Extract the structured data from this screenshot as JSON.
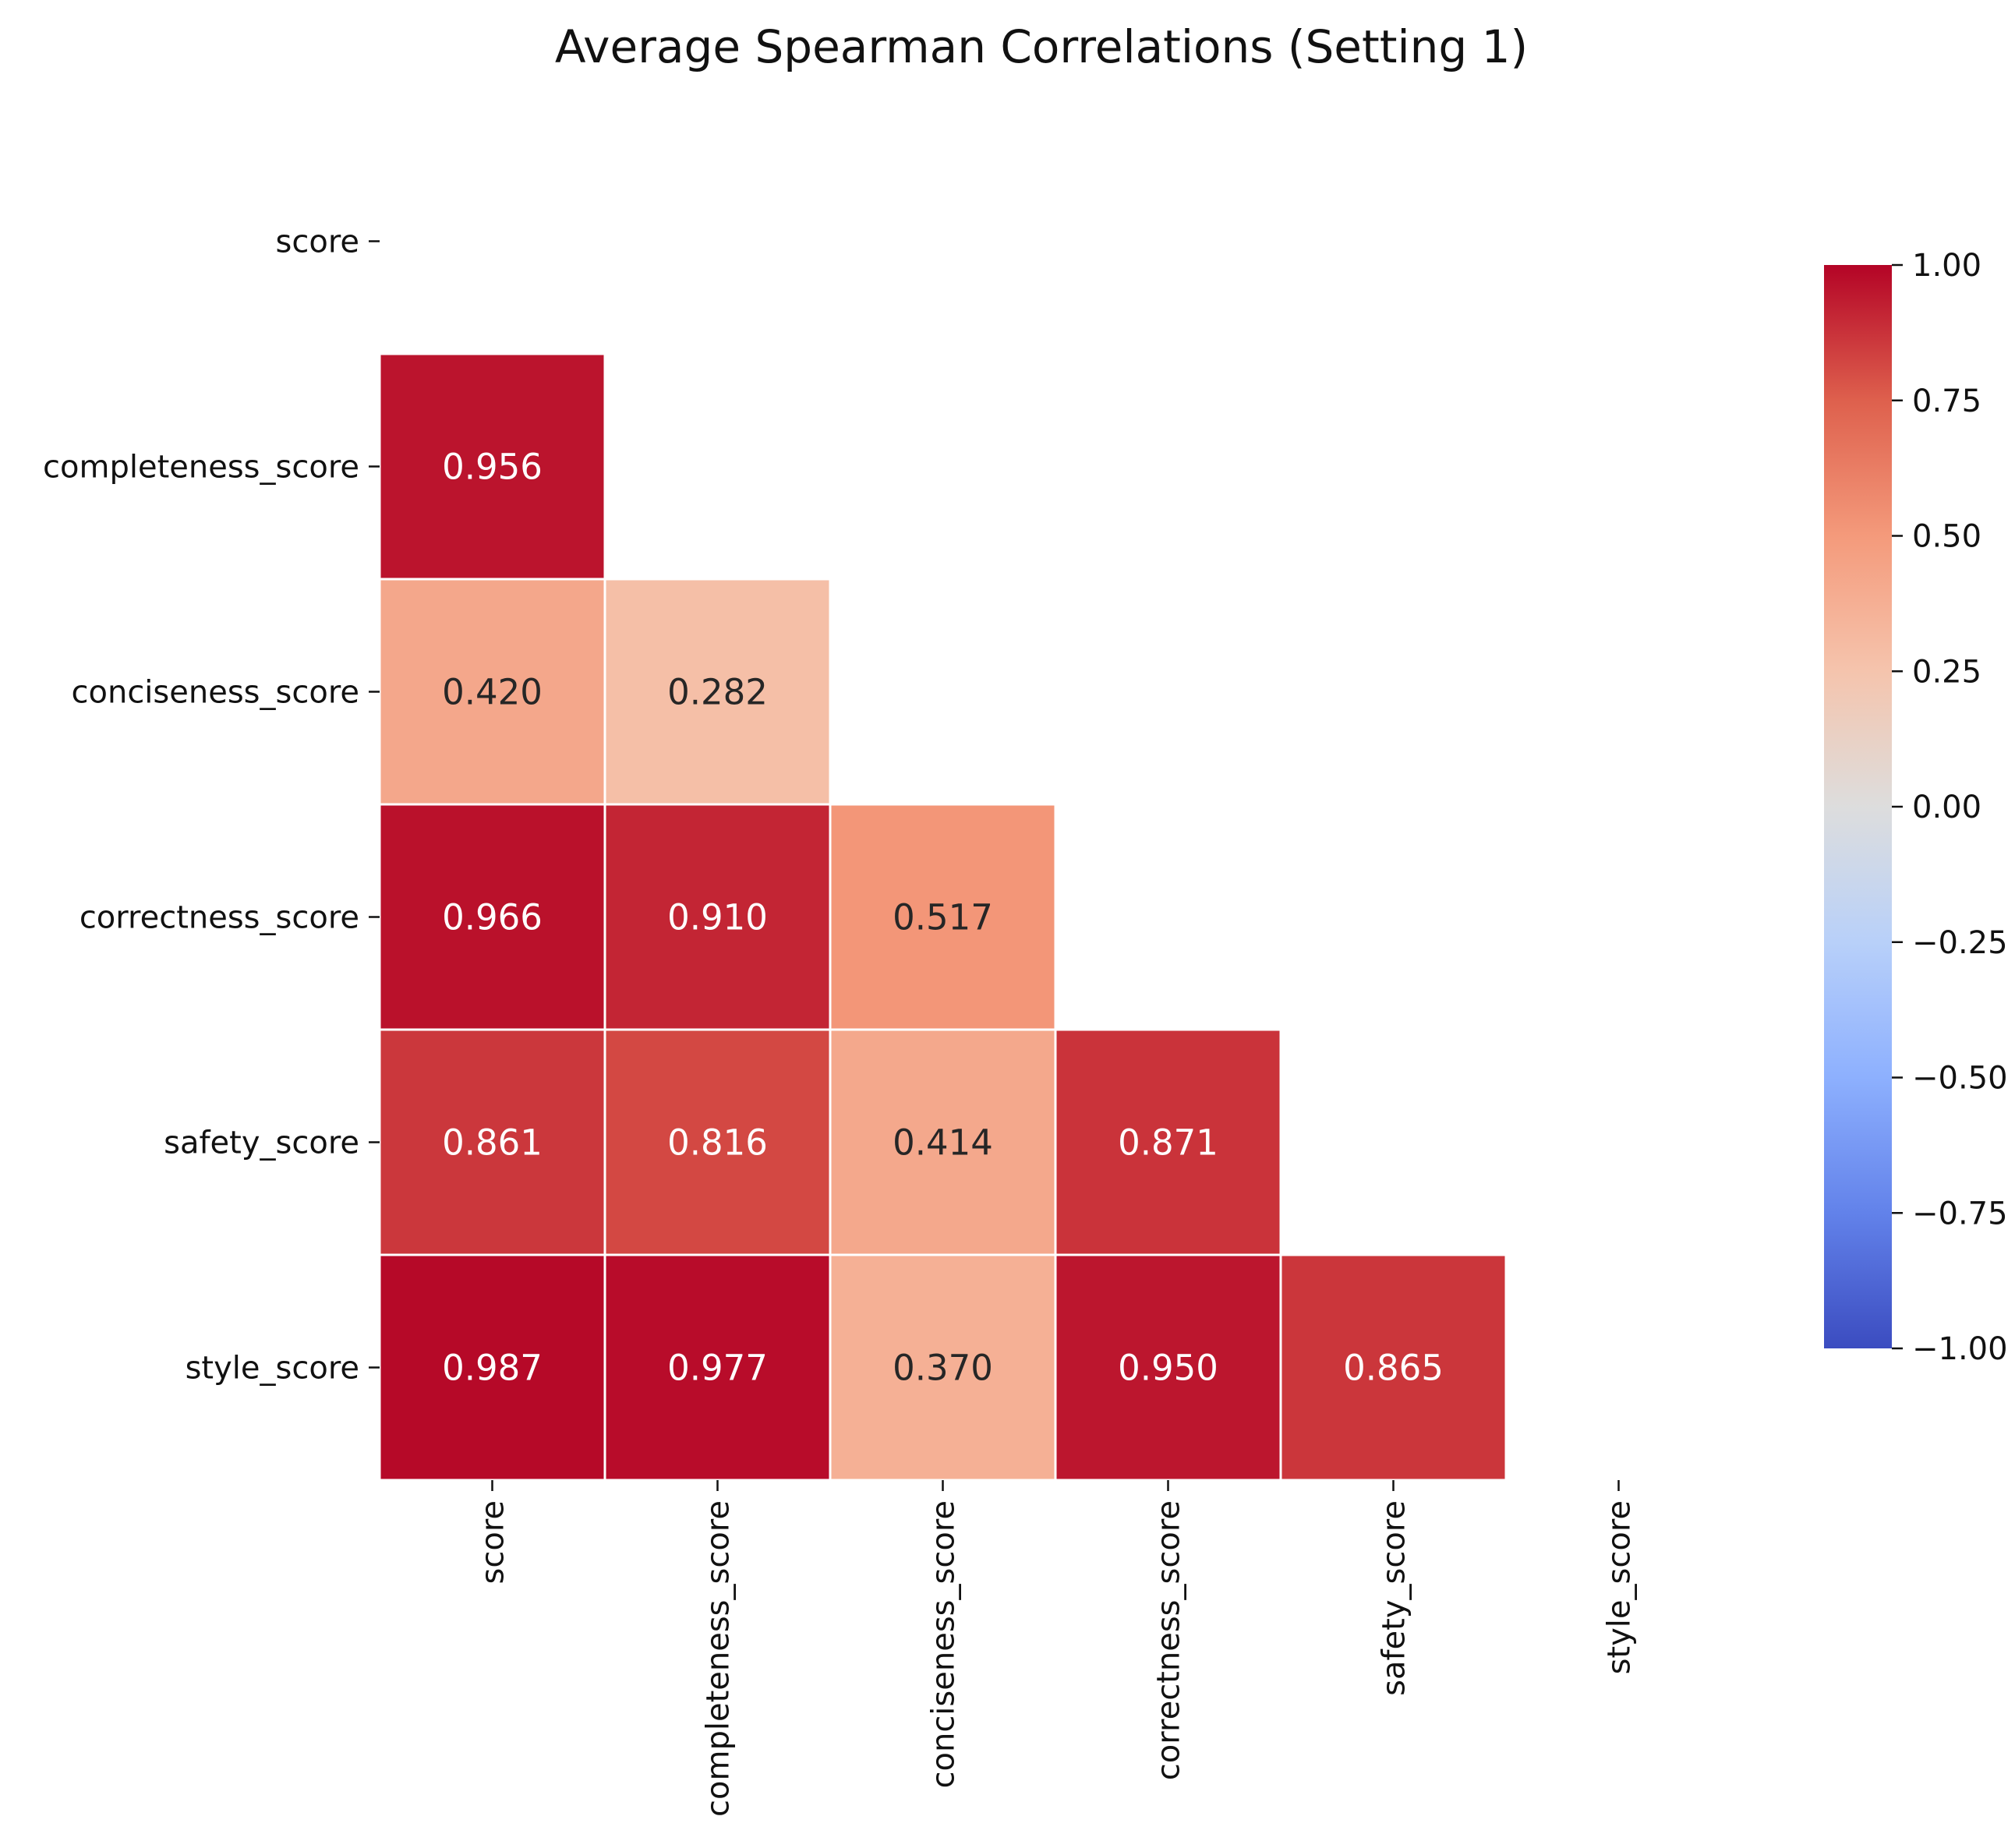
{
  "chart_data": {
    "type": "heatmap",
    "title": "Average Spearman Correlations (Setting 1)",
    "xlabel": "",
    "ylabel": "",
    "row_labels": [
      "score",
      "completeness_score",
      "conciseness_score",
      "correctness_score",
      "safety_score",
      "style_score"
    ],
    "col_labels": [
      "score",
      "completeness_score",
      "conciseness_score",
      "correctness_score",
      "safety_score",
      "style_score"
    ],
    "mask": "upper-triangle-including-diagonal",
    "values": [
      [
        null,
        null,
        null,
        null,
        null,
        null
      ],
      [
        0.956,
        null,
        null,
        null,
        null,
        null
      ],
      [
        0.42,
        0.282,
        null,
        null,
        null,
        null
      ],
      [
        0.966,
        0.91,
        0.517,
        null,
        null,
        null
      ],
      [
        0.861,
        0.816,
        0.414,
        0.871,
        null,
        null
      ],
      [
        0.987,
        0.977,
        0.37,
        0.95,
        0.865,
        null
      ]
    ],
    "value_labels": [
      [
        "",
        "",
        "",
        "",
        "",
        ""
      ],
      [
        "0.956",
        "",
        "",
        "",
        "",
        ""
      ],
      [
        "0.420",
        "0.282",
        "",
        "",
        "",
        ""
      ],
      [
        "0.966",
        "0.910",
        "0.517",
        "",
        "",
        ""
      ],
      [
        "0.861",
        "0.816",
        "0.414",
        "0.871",
        "",
        ""
      ],
      [
        "0.987",
        "0.977",
        "0.370",
        "0.950",
        "0.865",
        ""
      ]
    ],
    "colormap": "coolwarm",
    "colorbar": {
      "range": [
        -1.0,
        1.0
      ],
      "ticks": [
        1.0,
        0.75,
        0.5,
        0.25,
        0.0,
        -0.25,
        -0.5,
        -0.75,
        -1.0
      ],
      "tick_labels": [
        "1.00",
        "0.75",
        "0.50",
        "0.25",
        "0.00",
        "−0.25",
        "−0.50",
        "−0.75",
        "−1.00"
      ]
    }
  }
}
